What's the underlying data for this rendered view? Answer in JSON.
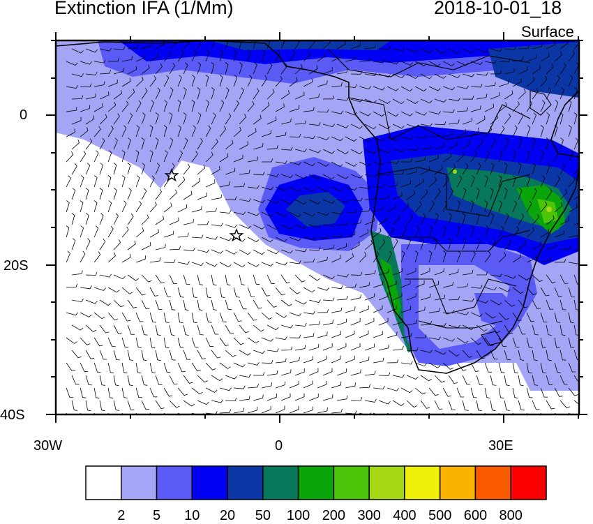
{
  "header": {
    "title": "Extinction IFA (1/Mm)",
    "datetime": "2018-10-01_18",
    "level": "Surface"
  },
  "map": {
    "projection": "cylindrical-equidistant",
    "lon_range": [
      -30,
      40
    ],
    "lat_range": [
      -40,
      10
    ],
    "lat_labels": [
      "0",
      "20S",
      "40S"
    ],
    "lon_labels": [
      "30W",
      "0",
      "30E"
    ],
    "field": "aerosol extinction (shaded)",
    "overlay": "wind barbs",
    "markers": [
      "star-marker",
      "star-marker"
    ]
  },
  "colorbar": {
    "labels": [
      "2",
      "5",
      "10",
      "20",
      "50",
      "100",
      "200",
      "300",
      "400",
      "500",
      "600",
      "800"
    ],
    "colors": [
      "#ffffff",
      "#a5a5f5",
      "#5a5af5",
      "#0000f5",
      "#0a37a5",
      "#07785a",
      "#0aa50a",
      "#4bc40a",
      "#a5d714",
      "#f0f00a",
      "#fab400",
      "#fa5a00",
      "#fa0000"
    ]
  }
}
